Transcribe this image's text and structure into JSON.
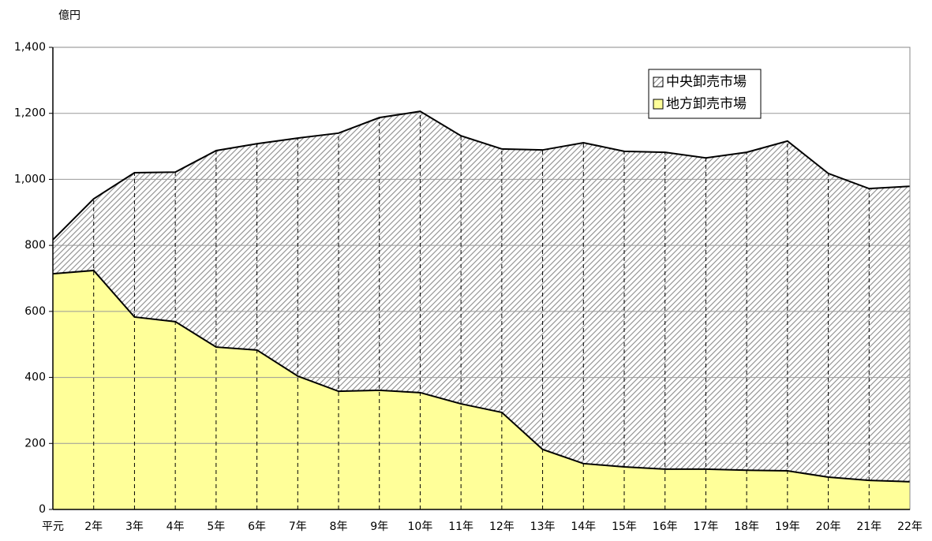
{
  "chart_data": {
    "type": "stacked_area",
    "y_label": "億円",
    "categories": [
      "平元",
      "2年",
      "3年",
      "4年",
      "5年",
      "6年",
      "7年",
      "8年",
      "9年",
      "10年",
      "11年",
      "12年",
      "13年",
      "14年",
      "15年",
      "16年",
      "17年",
      "18年",
      "19年",
      "20年",
      "21年",
      "22年"
    ],
    "series": [
      {
        "name": "中央卸売市場",
        "color": "#8c8c8c",
        "hatch": true,
        "values": [
          103,
          217,
          437,
          453,
          595,
          625,
          721,
          782,
          826,
          852,
          812,
          798,
          907,
          972,
          956,
          960,
          943,
          963,
          999,
          920,
          884,
          895
        ]
      },
      {
        "name": "地方卸売市場",
        "color": "#ffff99",
        "values": [
          714,
          724,
          583,
          569,
          492,
          483,
          404,
          358,
          361,
          354,
          320,
          294,
          182,
          139,
          129,
          122,
          122,
          119,
          117,
          98,
          88,
          84
        ]
      }
    ],
    "ylim": [
      0,
      1400
    ],
    "yticks": [
      0,
      200,
      400,
      600,
      800,
      {
        "value": 1000,
        "label": "1,000"
      },
      {
        "value": 1200,
        "label": "1,200"
      },
      {
        "value": 1400,
        "label": "1,400"
      }
    ],
    "grid": true,
    "legend": "upper right"
  }
}
